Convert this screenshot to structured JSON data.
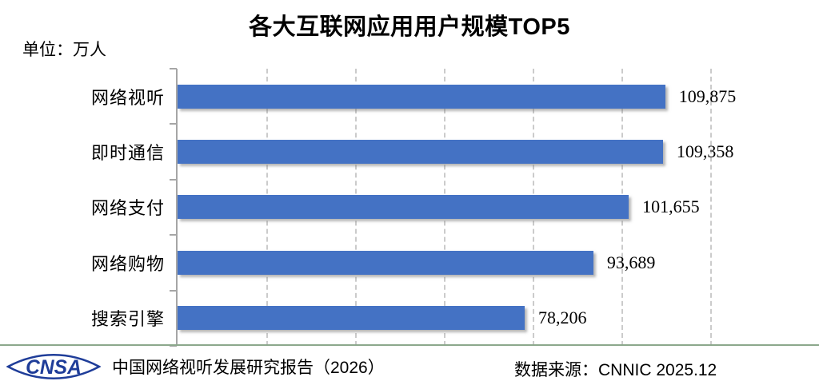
{
  "title": "各大互联网应用用户规模TOP5",
  "unit_label": "单位：万人",
  "chart_data": {
    "type": "bar",
    "orientation": "horizontal",
    "title": "各大互联网应用用户规模TOP5",
    "unit": "万人",
    "categories": [
      "网络视听",
      "即时通信",
      "网络支付",
      "网络购物",
      "搜索引擎"
    ],
    "values": [
      109875,
      109358,
      101655,
      93689,
      78206
    ],
    "value_labels": [
      "109,875",
      "109,358",
      "101,655",
      "93,689",
      "78,206"
    ],
    "xlabel": "",
    "ylabel": "",
    "xlim": [
      0,
      137500
    ],
    "gridline_step": 20000,
    "grid": "dashed-vertical",
    "legend": "none",
    "bar_color": "#4472C4"
  },
  "footer": {
    "logo_text": "CNSA",
    "report_label": "中国网络视听发展研究报告（2026）",
    "source_label": "数据来源：CNNIC 2025.12"
  },
  "colors": {
    "bar": "#4472C4",
    "gridline": "#cbcbcb",
    "axis": "#a6a6a6",
    "divider": "#8ca88c",
    "logo_blue": "#1f3d99"
  }
}
